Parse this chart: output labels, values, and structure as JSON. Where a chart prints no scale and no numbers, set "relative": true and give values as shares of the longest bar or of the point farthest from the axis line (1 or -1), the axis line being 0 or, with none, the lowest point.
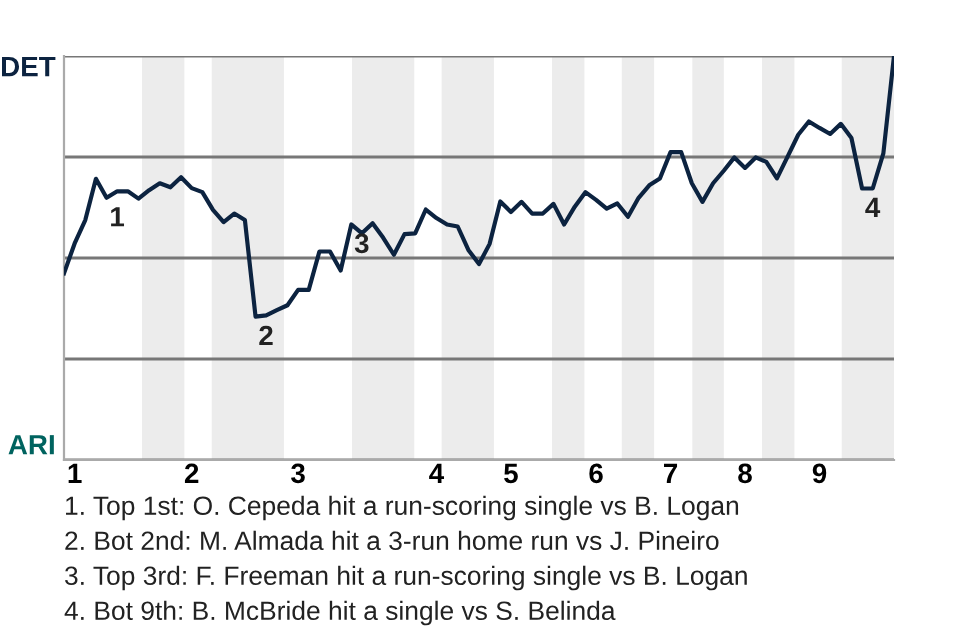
{
  "chart_data": {
    "type": "line",
    "relative": true,
    "categories": [
      null,
      "1",
      null,
      null,
      null,
      null,
      null,
      null,
      null,
      null,
      null,
      null,
      "2",
      null,
      null,
      null,
      null,
      null,
      null,
      null,
      null,
      null,
      "3",
      null,
      null,
      null,
      null,
      null,
      null,
      null,
      null,
      null,
      null,
      null,
      null,
      "4",
      null,
      null,
      null,
      null,
      null,
      null,
      "5",
      null,
      null,
      null,
      null,
      null,
      null,
      null,
      "6",
      null,
      null,
      null,
      null,
      null,
      null,
      "7",
      null,
      null,
      null,
      null,
      null,
      null,
      "8",
      null,
      null,
      null,
      null,
      null,
      null,
      "9",
      null,
      null,
      null,
      null,
      null,
      null,
      null
    ],
    "series": [
      {
        "color": "#0c2340",
        "values": [
          0.462,
          0.536,
          0.594,
          0.696,
          0.649,
          0.665,
          0.665,
          0.647,
          0.668,
          0.685,
          0.675,
          0.7,
          0.673,
          0.663,
          0.619,
          0.589,
          0.61,
          0.594,
          0.355,
          0.358,
          0.371,
          0.383,
          0.421,
          0.421,
          0.516,
          0.516,
          0.469,
          0.583,
          0.561,
          0.586,
          0.55,
          0.508,
          0.559,
          0.561,
          0.62,
          0.599,
          0.583,
          0.578,
          0.52,
          0.485,
          0.535,
          0.64,
          0.614,
          0.639,
          0.61,
          0.61,
          0.634,
          0.583,
          0.627,
          0.663,
          0.644,
          0.622,
          0.635,
          0.602,
          0.649,
          0.68,
          0.697,
          0.762,
          0.762,
          0.685,
          0.639,
          0.685,
          0.716,
          0.749,
          0.723,
          0.749,
          0.738,
          0.697,
          0.751,
          0.805,
          0.838,
          0.822,
          0.807,
          0.832,
          0.797,
          0.672,
          0.672,
          0.759,
          1
        ]
      }
    ],
    "grid": "y",
    "annotations": [
      "DET",
      "ARI",
      {
        "text": "1",
        "y": 0.649
      },
      {
        "text": "2",
        "y": 0.355
      },
      {
        "text": "3",
        "y": 0.583
      },
      {
        "text": "4",
        "y": 0.672
      },
      "1. Top 1st: O. Cepeda hit a run-scoring single vs B. Logan",
      "2. Bot 2nd: M. Almada hit a 3-run home run vs J. Pineiro",
      "3. Top 3rd: F. Freeman hit a run-scoring single vs B. Logan",
      "4. Bot 9th: B. McBride hit a single vs S. Belinda"
    ],
    "line_style": "solid",
    "marker": "none"
  }
}
